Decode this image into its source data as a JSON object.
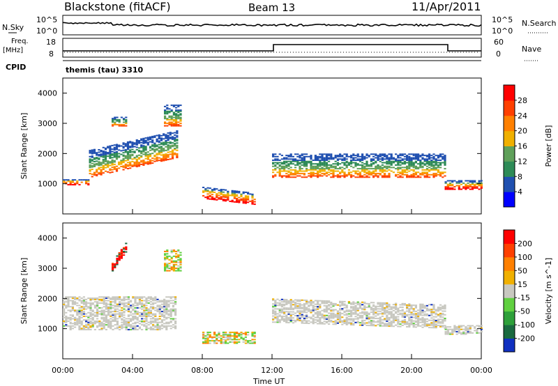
{
  "header": {
    "station": "Blackstone (fitACF)",
    "beam": "Beam 13",
    "date": "11/Apr/2011"
  },
  "panels": {
    "nsky_label": "N.Sky",
    "nsky_ticks": [
      "10^5",
      "10^0"
    ],
    "nsearch_label": "N.Search",
    "nsearch_ticks": [
      "10^5",
      "10^0"
    ],
    "freq_label": "Freq.",
    "freq_unit": "[MHz]",
    "freq_ticks": [
      "18",
      "8"
    ],
    "nave_label": "Nave",
    "nave_ticks": [
      "60",
      "0"
    ],
    "cpid_label": "CPID",
    "cpid_value": "themis (tau) 3310"
  },
  "colors": {
    "power": [
      "#0000ff",
      "#2050b0",
      "#2e8b57",
      "#5fa05a",
      "#f0b000",
      "#ff8000",
      "#ff4000",
      "#ff0000"
    ],
    "velocity": [
      "#1030c0",
      "#1a6a40",
      "#2ea03a",
      "#60d040",
      "#c8c8c0",
      "#f0b000",
      "#ff8000",
      "#ff4000",
      "#ff0000"
    ]
  },
  "chart_data": [
    {
      "type": "heatmap",
      "name": "power",
      "ylabel": "Slant Range [km]",
      "y_ticks": [
        "1000",
        "2000",
        "3000",
        "4000"
      ],
      "ylim": [
        0,
        4500
      ],
      "colorbar_label": "Power [dB]",
      "colorbar_ticks": [
        "4",
        "8",
        "12",
        "16",
        "20",
        "24",
        "28"
      ],
      "bands": [
        {
          "t0": 0.0,
          "t1": 1.5,
          "r0": 950,
          "r1": 1150,
          "level": "strong"
        },
        {
          "t0": 1.5,
          "t1": 6.5,
          "r0": 1200,
          "r1": 2100,
          "level": "medium"
        },
        {
          "t0": 2.8,
          "t1": 3.6,
          "r0": 2900,
          "r1": 3200,
          "level": "medium"
        },
        {
          "t0": 5.8,
          "t1": 6.8,
          "r0": 2900,
          "r1": 3600,
          "level": "medium"
        },
        {
          "t0": 8.0,
          "t1": 11.0,
          "r0": 500,
          "r1": 900,
          "level": "strong"
        },
        {
          "t0": 12.0,
          "t1": 21.9,
          "r0": 1200,
          "r1": 2000,
          "level": "medium"
        },
        {
          "t0": 21.9,
          "t1": 24.0,
          "r0": 800,
          "r1": 1100,
          "level": "strong"
        }
      ]
    },
    {
      "type": "heatmap",
      "name": "velocity",
      "xlabel": "Time UT",
      "ylabel": "Slant Range [km]",
      "x_ticks": [
        "00:00",
        "04:00",
        "08:00",
        "12:00",
        "16:00",
        "20:00",
        "00:00"
      ],
      "xlim": [
        0,
        24
      ],
      "y_ticks": [
        "1000",
        "2000",
        "3000",
        "4000"
      ],
      "ylim": [
        0,
        4500
      ],
      "colorbar_label": "Velocity [m s^-1]",
      "colorbar_ticks": [
        "200",
        "100",
        "50",
        "15",
        "-15",
        "-50",
        "-100",
        "-200"
      ],
      "bands": [
        {
          "t0": 0.0,
          "t1": 6.5,
          "r0": 950,
          "r1": 2050,
          "level": "neutral"
        },
        {
          "t0": 2.8,
          "t1": 3.6,
          "r0": 2900,
          "r1": 3200,
          "level": "negative"
        },
        {
          "t0": 5.8,
          "t1": 6.8,
          "r0": 2900,
          "r1": 3600,
          "level": "mixed"
        },
        {
          "t0": 8.0,
          "t1": 11.0,
          "r0": 500,
          "r1": 900,
          "level": "mixed"
        },
        {
          "t0": 12.0,
          "t1": 21.9,
          "r0": 1200,
          "r1": 2000,
          "level": "neutral"
        },
        {
          "t0": 21.9,
          "t1": 24.0,
          "r0": 800,
          "r1": 1100,
          "level": "neutral"
        }
      ]
    }
  ]
}
